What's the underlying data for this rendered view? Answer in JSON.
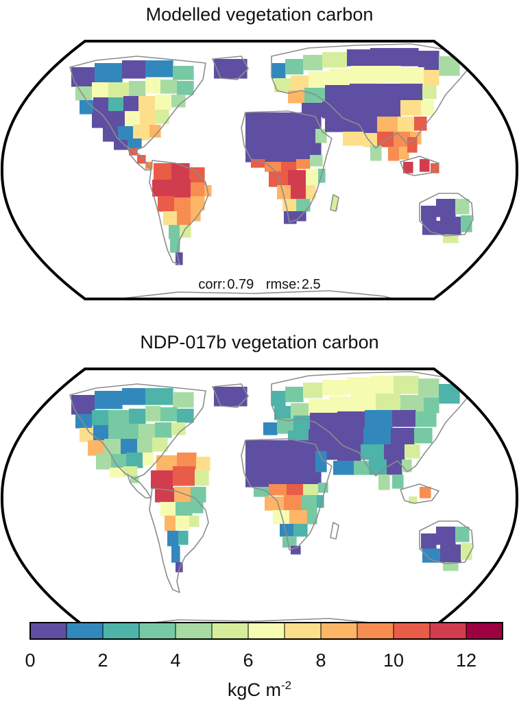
{
  "panels": [
    {
      "title": "Modelled vegetation carbon",
      "stats": {
        "corr_label": "corr:",
        "corr_value": "0.79",
        "rmse_label": "rmse:",
        "rmse_value": "2.5"
      }
    },
    {
      "title": "NDP-017b vegetation carbon"
    }
  ],
  "colorbar": {
    "min": 0,
    "max": 13,
    "ticks": [
      "0",
      "2",
      "4",
      "6",
      "8",
      "10",
      "12"
    ],
    "unit_base": "kgC m",
    "unit_exp": "-2",
    "colors": [
      "#5e4fa2",
      "#3288bd",
      "#4eb3a8",
      "#77c9a4",
      "#a8dba4",
      "#d6ee9b",
      "#f6fbb2",
      "#fddf8b",
      "#fdb566",
      "#f88d52",
      "#e95c47",
      "#d13d4f",
      "#9e0142"
    ]
  },
  "legend_colors": {
    "border": "#000000",
    "coastline": "#8c8c8c"
  }
}
